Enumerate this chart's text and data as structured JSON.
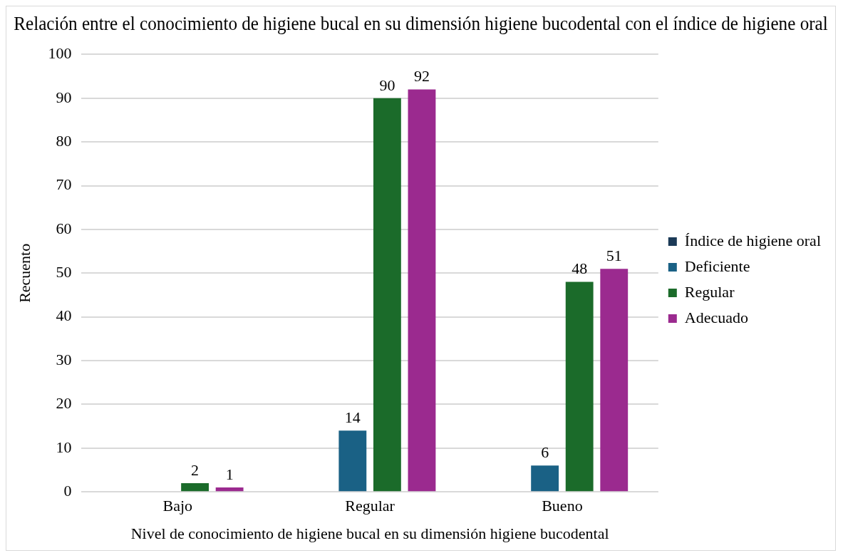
{
  "chart_data": {
    "type": "bar",
    "title": "Relación entre el conocimiento de higiene bucal en su dimensión higiene bucodental con el índice de higiene oral",
    "xlabel": "Nivel de conocimiento de higiene bucal en su dimensión higiene bucodental",
    "ylabel": "Recuento",
    "categories": [
      "Bajo",
      "Regular",
      "Bueno"
    ],
    "series": [
      {
        "name": "Índice de higiene oral",
        "color": "#1b3a57",
        "values": [
          null,
          null,
          null
        ]
      },
      {
        "name": "Deficiente",
        "color": "#1a6185",
        "values": [
          null,
          14,
          6
        ]
      },
      {
        "name": "Regular",
        "color": "#1b6b2a",
        "values": [
          2,
          90,
          48
        ]
      },
      {
        "name": "Adecuado",
        "color": "#9b2a8f",
        "values": [
          1,
          92,
          51
        ]
      }
    ],
    "ylim": [
      0,
      100
    ],
    "yticks": [
      0,
      10,
      20,
      30,
      40,
      50,
      60,
      70,
      80,
      90,
      100
    ],
    "grid": "y",
    "legend": "right",
    "data_labels": true
  }
}
